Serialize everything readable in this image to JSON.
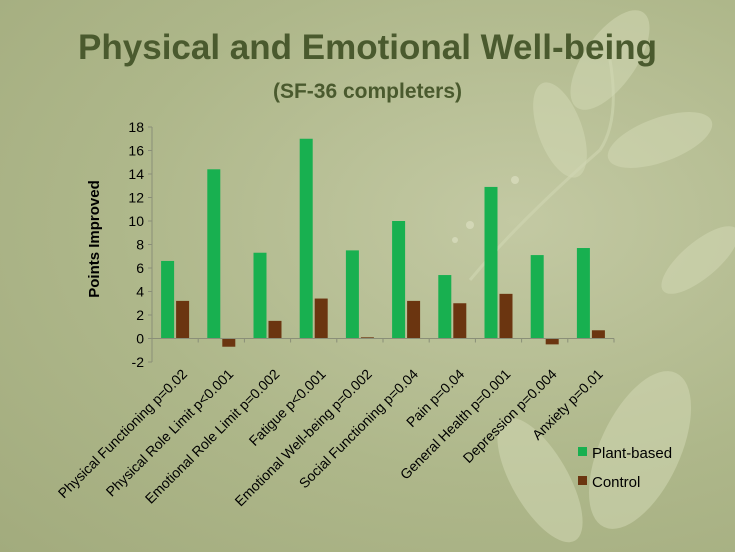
{
  "title": "Physical and Emotional Well-being",
  "subtitle": "(SF-36 completers)",
  "colors": {
    "plant": "#18b050",
    "control": "#6b3510",
    "title": "#4a5a2e"
  },
  "chart_data": {
    "type": "bar",
    "title": "Physical and Emotional Well-being",
    "subtitle": "(SF-36 completers)",
    "ylabel": "Points Improved",
    "ylim": [
      -2,
      18
    ],
    "yticks": [
      -2,
      0,
      2,
      4,
      6,
      8,
      10,
      12,
      14,
      16,
      18
    ],
    "grid": false,
    "legend": "bottom-right",
    "categories": [
      "Physical Functioning p=0.02",
      "Physical Role Limit p<0.001",
      "Emotional Role Limit p=0.002",
      "Fatigue p<0.001",
      "Emotional Well-being p=0.002",
      "Social Functioning p=0.04",
      "Pain p=0.04",
      "General Health p=0.001",
      "Depression p=0.004",
      "Anxiety p=0.01"
    ],
    "series": [
      {
        "name": "Plant-based",
        "values": [
          6.6,
          14.4,
          7.3,
          17.0,
          7.5,
          10.0,
          5.4,
          12.9,
          7.1,
          7.7
        ]
      },
      {
        "name": "Control",
        "values": [
          3.2,
          -0.7,
          1.5,
          3.4,
          0.1,
          3.2,
          3.0,
          3.8,
          -0.5,
          0.7
        ]
      }
    ]
  }
}
